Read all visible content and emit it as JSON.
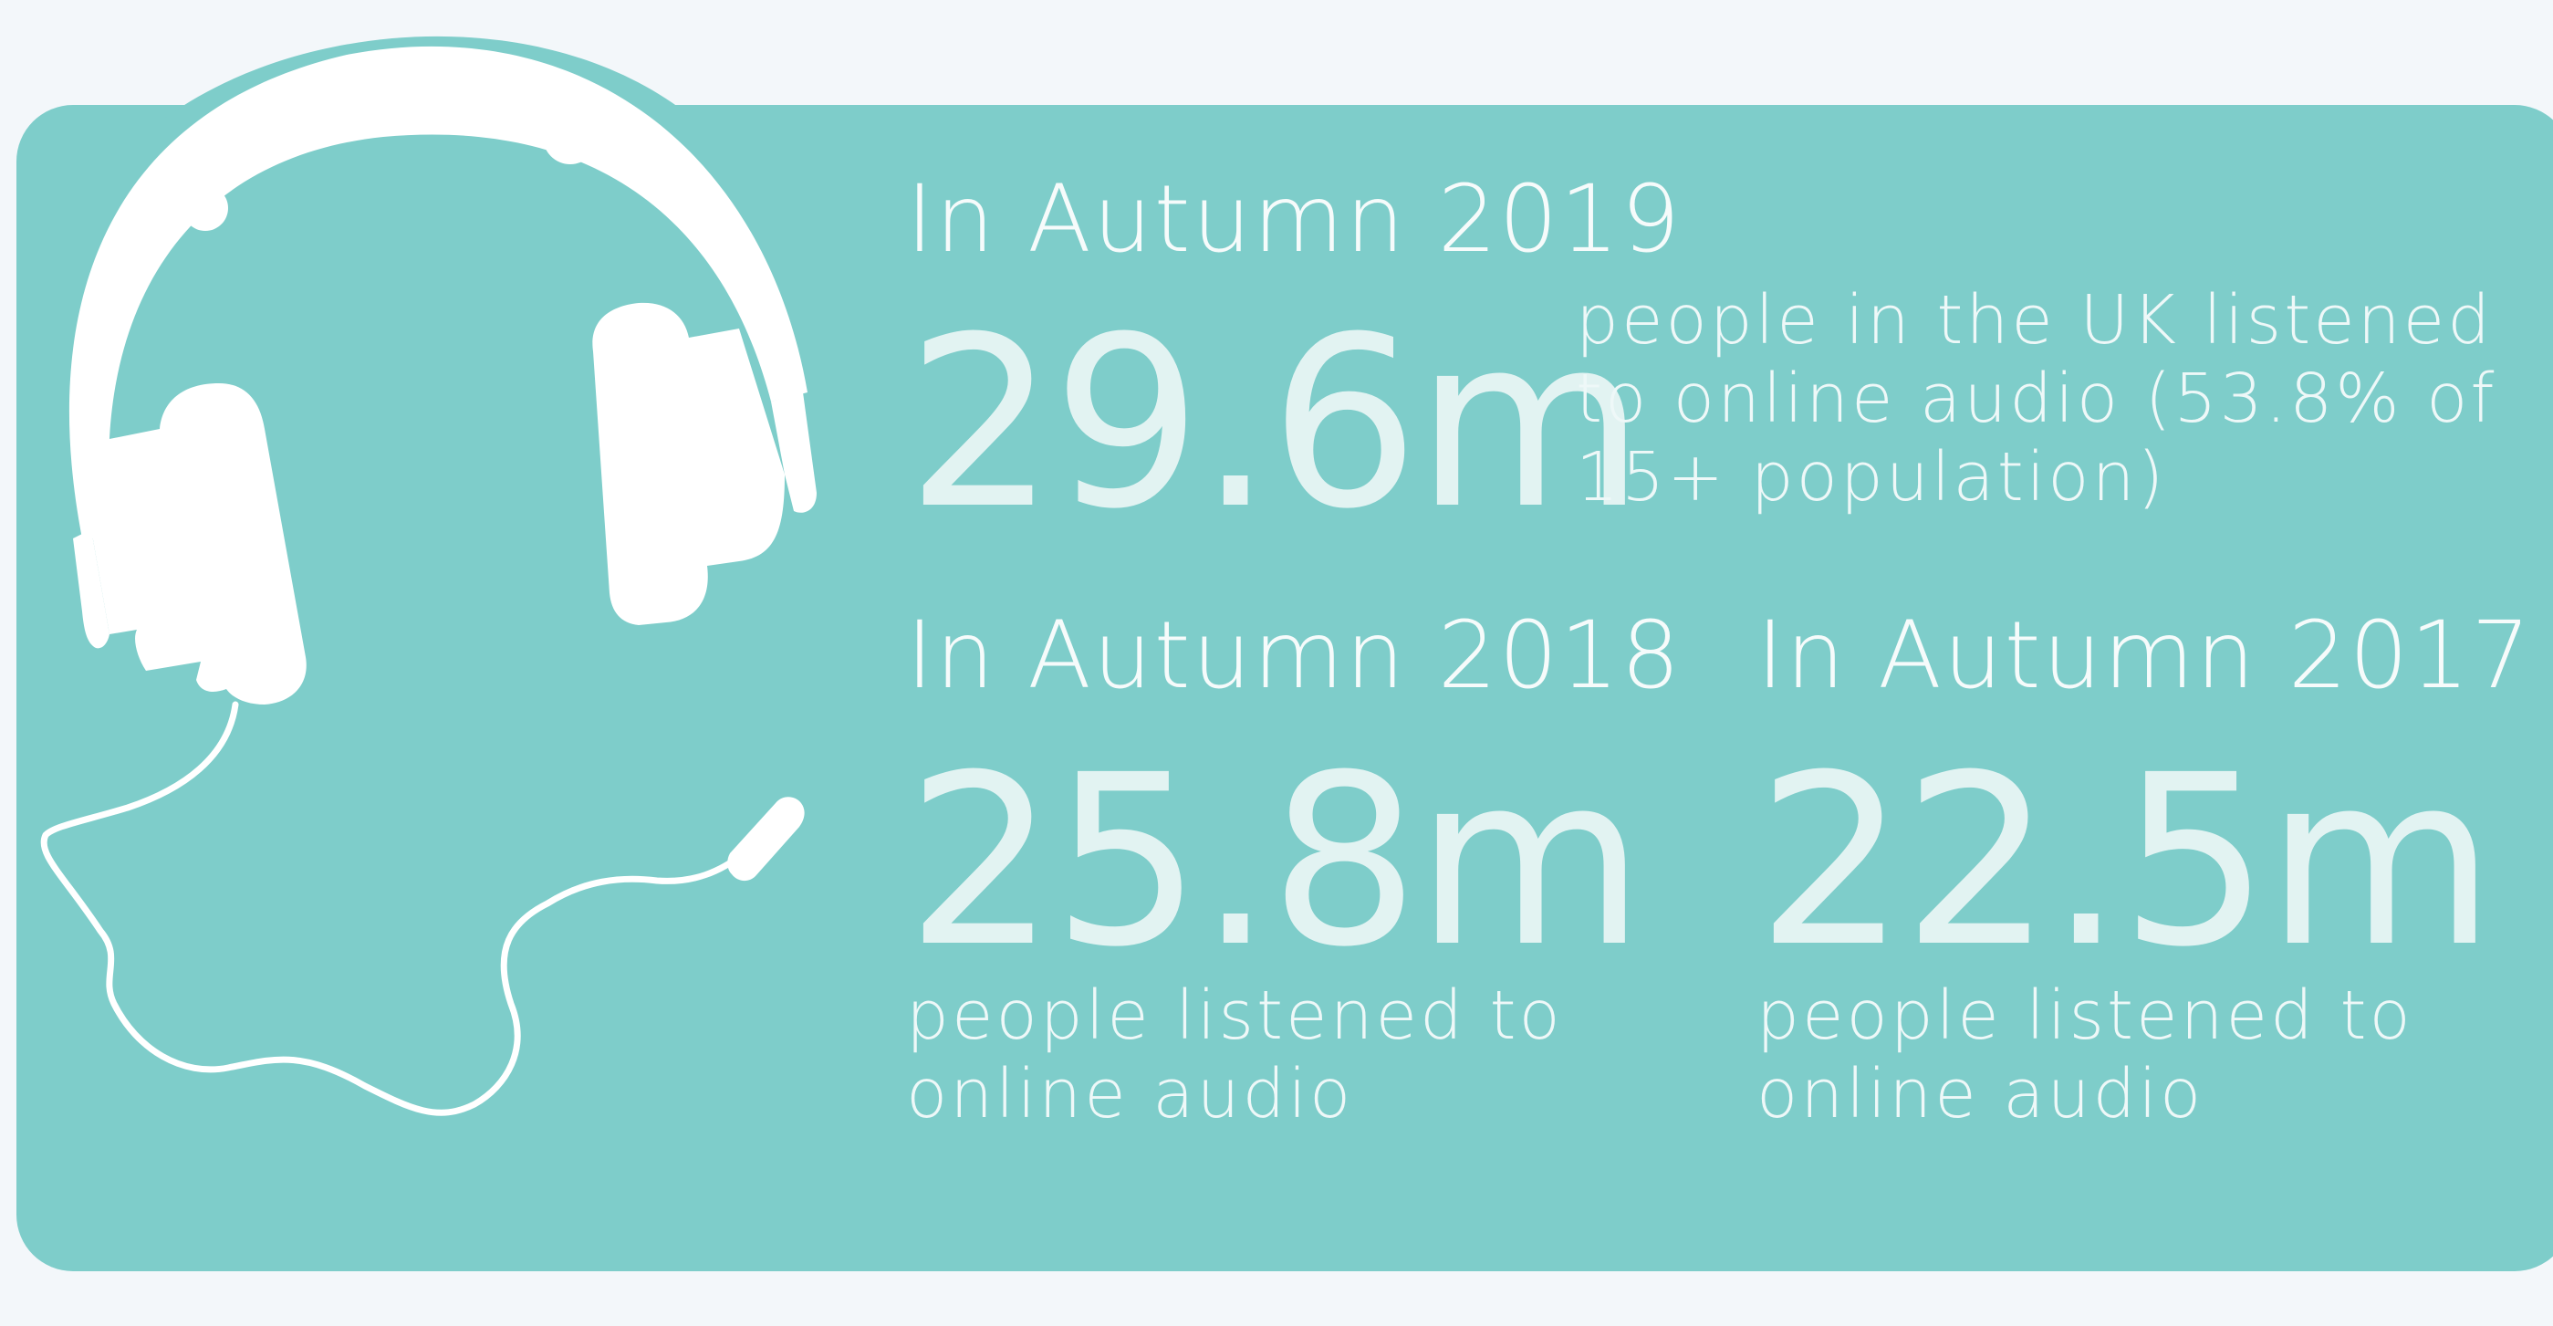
{
  "stats": {
    "autumn_2019": {
      "label": "In Autumn 2019",
      "value": "29.6m",
      "desc_line1": "people in the UK listened",
      "desc_line2": "to online audio (53.8% of",
      "desc_line3": "15+ population)"
    },
    "autumn_2018": {
      "label": "In Autumn 2018",
      "value": "25.8m",
      "desc_line1": "people listened to",
      "desc_line2": "online audio"
    },
    "autumn_2017": {
      "label": "In Autumn 2017",
      "value": "22.5m",
      "desc_line1": "people listened to",
      "desc_line2": "online audio"
    }
  },
  "colors": {
    "panel": "#7ecdca",
    "background": "#f3f7fa",
    "text": "#e6f4f3"
  },
  "icon": "headphones-icon"
}
